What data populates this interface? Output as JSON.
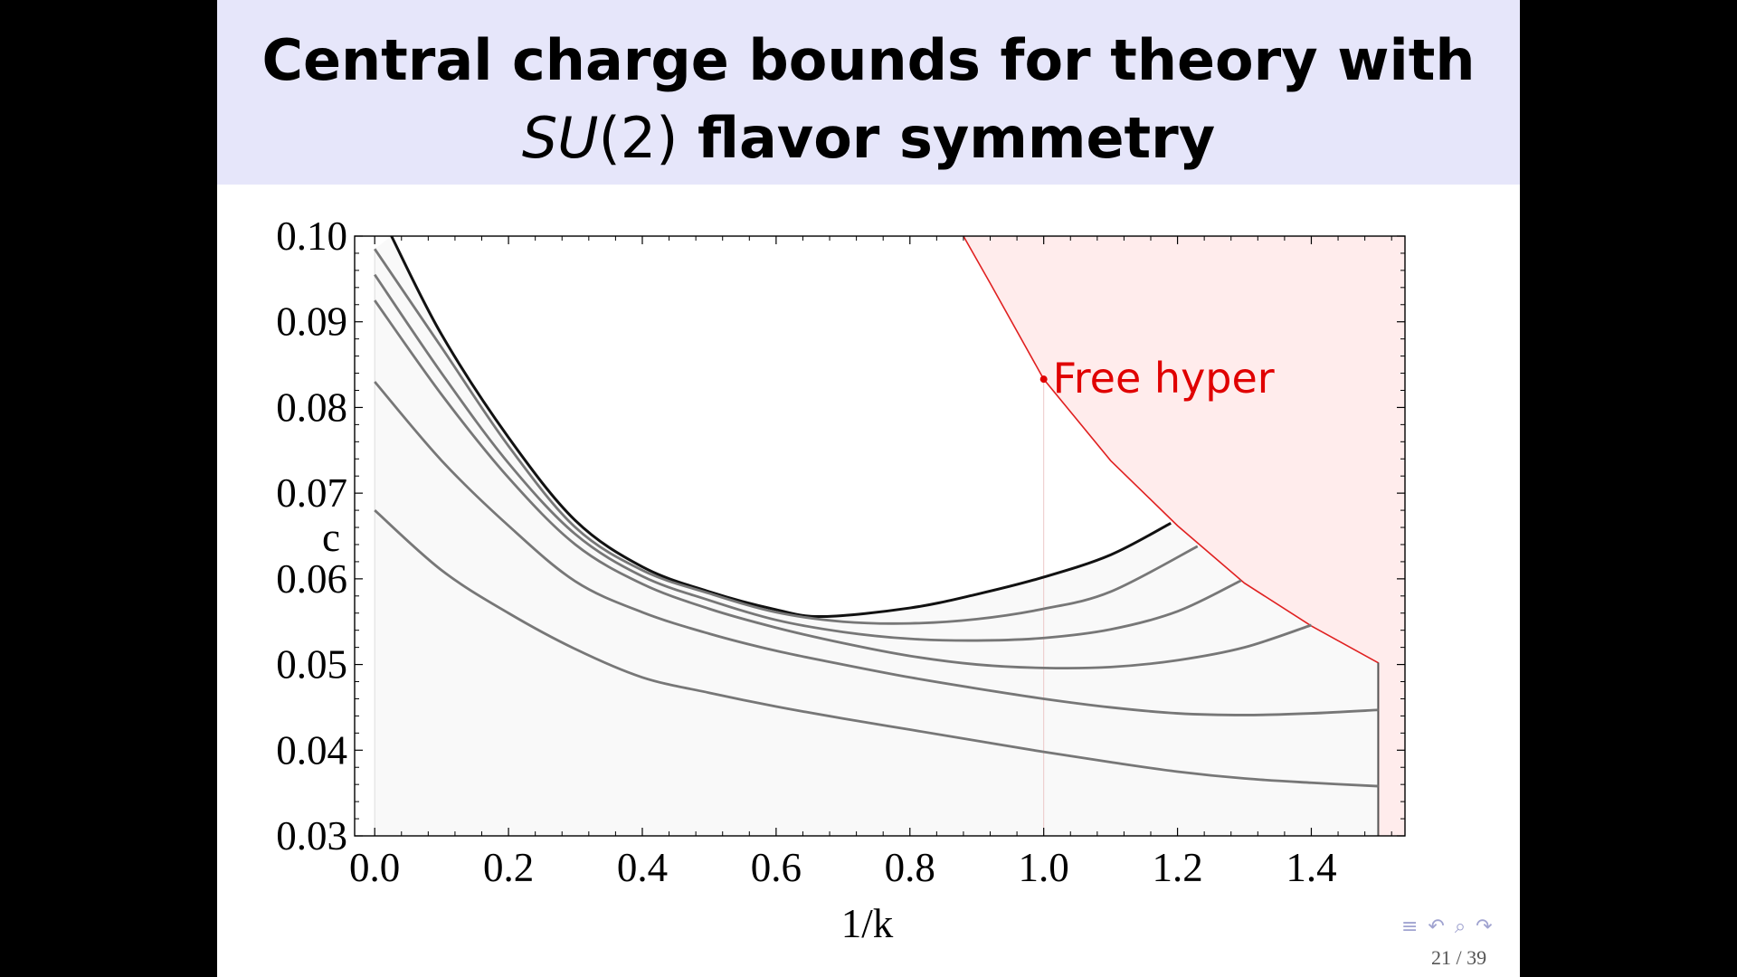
{
  "slide": {
    "title_line1": "Central charge bounds for theory with",
    "title_math_it": "SU",
    "title_math_rm": "(2)",
    "title_line2_rest": " flavor symmetry",
    "page_number": "21 / 39",
    "nav_icons": [
      "menu-icon",
      "undo-icon",
      "search-icon",
      "redo-icon"
    ],
    "nav_symbols": "≡ ↶ ⌕ ↷"
  },
  "chart_data": {
    "type": "line",
    "xlabel": "1/k",
    "ylabel": "c",
    "xlim": [
      -0.03,
      1.54
    ],
    "ylim": [
      0.03,
      0.1
    ],
    "x_ticks": [
      "0.0",
      "0.2",
      "0.4",
      "0.6",
      "0.8",
      "1.0",
      "1.2",
      "1.4"
    ],
    "y_ticks": [
      "0.03",
      "0.04",
      "0.05",
      "0.06",
      "0.07",
      "0.08",
      "0.09",
      "0.10"
    ],
    "colors": {
      "bound_region": "#f9f9f9",
      "main_bound": "#111111",
      "other_bounds": "#777777",
      "excluded_region": "#ffecec",
      "excluded_edge": "#e02020",
      "annotation": "#e00000"
    },
    "excluded_region": {
      "description_free": true,
      "boundary": [
        {
          "x": 0.88,
          "y": 0.1
        },
        {
          "x": 0.92,
          "y": 0.0945
        },
        {
          "x": 1.0,
          "y": 0.0833
        },
        {
          "x": 1.1,
          "y": 0.0738
        },
        {
          "x": 1.2,
          "y": 0.0662
        },
        {
          "x": 1.3,
          "y": 0.0595
        },
        {
          "x": 1.4,
          "y": 0.0545
        },
        {
          "x": 1.5,
          "y": 0.0502
        }
      ],
      "right_edge_x": 1.5
    },
    "annotation": {
      "text": "Free hyper",
      "x": 1.0,
      "y": 0.0833
    },
    "series": [
      {
        "values": [
          {
            "x": 0.025,
            "y": 0.1
          },
          {
            "x": 0.1,
            "y": 0.0885
          },
          {
            "x": 0.2,
            "y": 0.0765
          },
          {
            "x": 0.3,
            "y": 0.0668
          },
          {
            "x": 0.4,
            "y": 0.0614
          },
          {
            "x": 0.5,
            "y": 0.0585
          },
          {
            "x": 0.6,
            "y": 0.0564
          },
          {
            "x": 0.67,
            "y": 0.0556
          },
          {
            "x": 0.8,
            "y": 0.0566
          },
          {
            "x": 0.9,
            "y": 0.0582
          },
          {
            "x": 1.0,
            "y": 0.0602
          },
          {
            "x": 1.1,
            "y": 0.0628
          },
          {
            "x": 1.19,
            "y": 0.0665
          }
        ]
      },
      {
        "values": [
          {
            "x": 0.0,
            "y": 0.0985
          },
          {
            "x": 0.1,
            "y": 0.087
          },
          {
            "x": 0.2,
            "y": 0.0755
          },
          {
            "x": 0.3,
            "y": 0.066
          },
          {
            "x": 0.4,
            "y": 0.061
          },
          {
            "x": 0.5,
            "y": 0.0583
          },
          {
            "x": 0.6,
            "y": 0.0561
          },
          {
            "x": 0.7,
            "y": 0.055
          },
          {
            "x": 0.8,
            "y": 0.0548
          },
          {
            "x": 0.9,
            "y": 0.0553
          },
          {
            "x": 1.0,
            "y": 0.0565
          },
          {
            "x": 1.1,
            "y": 0.0585
          },
          {
            "x": 1.23,
            "y": 0.0638
          }
        ]
      },
      {
        "values": [
          {
            "x": 0.0,
            "y": 0.0955
          },
          {
            "x": 0.1,
            "y": 0.084
          },
          {
            "x": 0.2,
            "y": 0.0735
          },
          {
            "x": 0.3,
            "y": 0.0652
          },
          {
            "x": 0.4,
            "y": 0.0603
          },
          {
            "x": 0.5,
            "y": 0.0575
          },
          {
            "x": 0.6,
            "y": 0.0552
          },
          {
            "x": 0.7,
            "y": 0.0538
          },
          {
            "x": 0.8,
            "y": 0.053
          },
          {
            "x": 0.9,
            "y": 0.0528
          },
          {
            "x": 1.0,
            "y": 0.0531
          },
          {
            "x": 1.1,
            "y": 0.0541
          },
          {
            "x": 1.2,
            "y": 0.0562
          },
          {
            "x": 1.295,
            "y": 0.0598
          }
        ]
      },
      {
        "values": [
          {
            "x": 0.0,
            "y": 0.0925
          },
          {
            "x": 0.1,
            "y": 0.0815
          },
          {
            "x": 0.2,
            "y": 0.0718
          },
          {
            "x": 0.3,
            "y": 0.064
          },
          {
            "x": 0.4,
            "y": 0.0594
          },
          {
            "x": 0.5,
            "y": 0.0565
          },
          {
            "x": 0.6,
            "y": 0.0543
          },
          {
            "x": 0.7,
            "y": 0.0525
          },
          {
            "x": 0.8,
            "y": 0.051
          },
          {
            "x": 0.9,
            "y": 0.05
          },
          {
            "x": 1.0,
            "y": 0.0496
          },
          {
            "x": 1.1,
            "y": 0.0497
          },
          {
            "x": 1.2,
            "y": 0.0505
          },
          {
            "x": 1.3,
            "y": 0.052
          },
          {
            "x": 1.4,
            "y": 0.0546
          }
        ]
      },
      {
        "values": [
          {
            "x": 0.0,
            "y": 0.083
          },
          {
            "x": 0.1,
            "y": 0.0738
          },
          {
            "x": 0.2,
            "y": 0.0662
          },
          {
            "x": 0.3,
            "y": 0.0597
          },
          {
            "x": 0.4,
            "y": 0.0561
          },
          {
            "x": 0.5,
            "y": 0.0536
          },
          {
            "x": 0.6,
            "y": 0.0516
          },
          {
            "x": 0.7,
            "y": 0.05
          },
          {
            "x": 0.8,
            "y": 0.0485
          },
          {
            "x": 0.9,
            "y": 0.0472
          },
          {
            "x": 1.0,
            "y": 0.046
          },
          {
            "x": 1.1,
            "y": 0.045
          },
          {
            "x": 1.2,
            "y": 0.0443
          },
          {
            "x": 1.3,
            "y": 0.0441
          },
          {
            "x": 1.4,
            "y": 0.0443
          },
          {
            "x": 1.5,
            "y": 0.0447
          }
        ]
      },
      {
        "values": [
          {
            "x": 0.0,
            "y": 0.068
          },
          {
            "x": 0.1,
            "y": 0.061
          },
          {
            "x": 0.2,
            "y": 0.056
          },
          {
            "x": 0.3,
            "y": 0.0518
          },
          {
            "x": 0.4,
            "y": 0.0485
          },
          {
            "x": 0.5,
            "y": 0.0467
          },
          {
            "x": 0.6,
            "y": 0.0451
          },
          {
            "x": 0.7,
            "y": 0.0437
          },
          {
            "x": 0.8,
            "y": 0.0424
          },
          {
            "x": 0.9,
            "y": 0.0411
          },
          {
            "x": 1.0,
            "y": 0.0398
          },
          {
            "x": 1.1,
            "y": 0.0386
          },
          {
            "x": 1.2,
            "y": 0.0375
          },
          {
            "x": 1.3,
            "y": 0.0367
          },
          {
            "x": 1.4,
            "y": 0.0362
          },
          {
            "x": 1.5,
            "y": 0.0358
          }
        ]
      }
    ]
  }
}
